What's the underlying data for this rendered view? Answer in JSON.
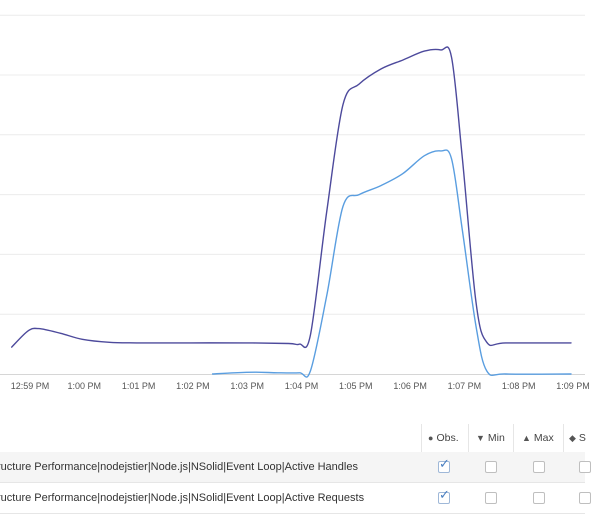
{
  "chart_data": {
    "type": "line",
    "x_tick_labels": [
      "12:59 PM",
      "1:00 PM",
      "1:01 PM",
      "1:02 PM",
      "1:03 PM",
      "1:04 PM",
      "1:05 PM",
      "1:06 PM",
      "1:07 PM",
      "1:08 PM",
      "1:09 PM"
    ],
    "x_visible_range": [
      -0.3,
      10.0
    ],
    "ylim": [
      0,
      6
    ],
    "grid": true,
    "y_tick_labels_visible": false,
    "series": [
      {
        "name": "ructure Performance|nodejstier|Node.js|NSolid|Event Loop|Active Handles",
        "color": "#4d4a9c",
        "points": [
          [
            -0.3,
            0.45
          ],
          [
            0,
            0.72
          ],
          [
            0.2,
            0.76
          ],
          [
            0.6,
            0.68
          ],
          [
            1.0,
            0.58
          ],
          [
            1.5,
            0.53
          ],
          [
            2.0,
            0.52
          ],
          [
            3.0,
            0.52
          ],
          [
            4.0,
            0.52
          ],
          [
            4.8,
            0.51
          ],
          [
            5.0,
            0.5
          ],
          [
            5.2,
            0.65
          ],
          [
            5.5,
            2.7
          ],
          [
            5.8,
            4.5
          ],
          [
            6.1,
            4.85
          ],
          [
            6.5,
            5.1
          ],
          [
            6.9,
            5.25
          ],
          [
            7.3,
            5.4
          ],
          [
            7.6,
            5.42
          ],
          [
            7.8,
            5.3
          ],
          [
            8.0,
            3.6
          ],
          [
            8.25,
            1.2
          ],
          [
            8.45,
            0.53
          ],
          [
            8.8,
            0.52
          ],
          [
            10.0,
            0.52
          ]
        ]
      },
      {
        "name": "ructure Performance|nodejstier|Node.js|NSolid|Event Loop|Active Requests",
        "color": "#5a9ee0",
        "points": [
          [
            3.4,
            0.0
          ],
          [
            3.8,
            0.02
          ],
          [
            4.2,
            0.03
          ],
          [
            4.6,
            0.02
          ],
          [
            5.0,
            0.02
          ],
          [
            5.2,
            0.05
          ],
          [
            5.5,
            1.3
          ],
          [
            5.8,
            2.8
          ],
          [
            6.1,
            3.0
          ],
          [
            6.5,
            3.15
          ],
          [
            6.9,
            3.35
          ],
          [
            7.3,
            3.65
          ],
          [
            7.6,
            3.73
          ],
          [
            7.8,
            3.6
          ],
          [
            8.0,
            2.4
          ],
          [
            8.25,
            0.8
          ],
          [
            8.45,
            0.05
          ],
          [
            8.8,
            0.0
          ],
          [
            10.0,
            0.0
          ]
        ]
      }
    ],
    "legend_columns": [
      "Obs.",
      "Min",
      "Max",
      "S"
    ]
  },
  "legend_table": {
    "header": {
      "obs_icon": "●",
      "obs_label": "Obs.",
      "min_icon": "▼",
      "min_label": "Min",
      "max_icon": "▲",
      "max_label": "Max",
      "sum_icon": "◆",
      "sum_label": "S"
    },
    "rows": [
      {
        "label": "ructure Performance|nodejstier|Node.js|NSolid|Event Loop|Active Handles",
        "obs_checked": true,
        "min_checked": false,
        "max_checked": false,
        "sum_checked": false,
        "check_glyph": "✓"
      },
      {
        "label": "ructure Performance|nodejstier|Node.js|NSolid|Event Loop|Active Requests",
        "obs_checked": true,
        "min_checked": false,
        "max_checked": false,
        "sum_checked": false,
        "check_glyph": "✓"
      }
    ]
  }
}
